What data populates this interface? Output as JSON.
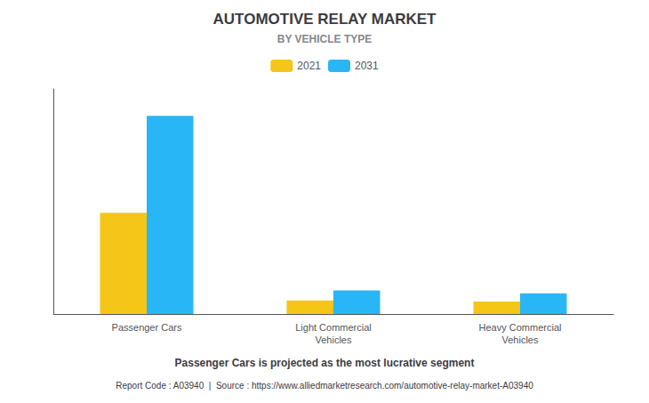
{
  "chart_data": {
    "type": "bar",
    "title": "AUTOMOTIVE RELAY MARKET",
    "subtitle": "BY VEHICLE TYPE",
    "categories": [
      "Passenger Cars",
      "Light Commercial\nVehicles",
      "Heavy Commercial\nVehicles"
    ],
    "series": [
      {
        "name": "2021",
        "color": "#F5C518",
        "values": [
          4.5,
          0.6,
          0.55
        ]
      },
      {
        "name": "2031",
        "color": "#29B6F6",
        "values": [
          8.8,
          1.05,
          0.92
        ]
      }
    ],
    "ylim": [
      0,
      10
    ],
    "yticks": [],
    "grid": false,
    "legend": "top",
    "tick_labels": "x",
    "annotations": [
      "Passenger Cars is projected as the most lucrative segment",
      "Report Code : A03940  |  Source : https://www.alliedmarketresearch.com/automotive-relay-market-A03940"
    ]
  }
}
